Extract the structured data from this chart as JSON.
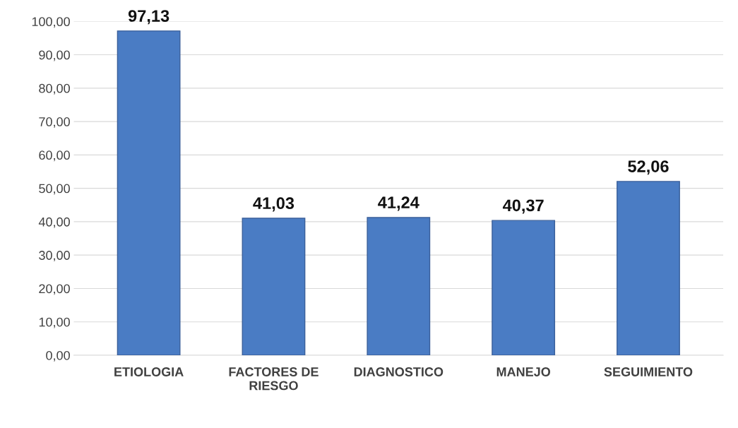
{
  "chart_data": {
    "type": "bar",
    "categories": [
      "ETIOLOGIA",
      "FACTORES DE\nRIESGO",
      "DIAGNOSTICO",
      "MANEJO",
      "SEGUIMIENTO"
    ],
    "values": [
      97.13,
      41.03,
      41.24,
      40.37,
      52.06
    ],
    "value_labels": [
      "97,13",
      "41,03",
      "41,24",
      "40,37",
      "52,06"
    ],
    "color": "#4a7cc4",
    "ylim": [
      0,
      100
    ],
    "yticks": [
      {
        "value": 0,
        "label": "0,00"
      },
      {
        "value": 10,
        "label": "10,00"
      },
      {
        "value": 20,
        "label": "20,00"
      },
      {
        "value": 30,
        "label": "30,00"
      },
      {
        "value": 40,
        "label": "40,00"
      },
      {
        "value": 50,
        "label": "50,00"
      },
      {
        "value": 60,
        "label": "60,00"
      },
      {
        "value": 70,
        "label": "70,00"
      },
      {
        "value": 80,
        "label": "80,00"
      },
      {
        "value": 90,
        "label": "90,00"
      },
      {
        "value": 100,
        "label": "100,00"
      }
    ],
    "grid": "y"
  }
}
